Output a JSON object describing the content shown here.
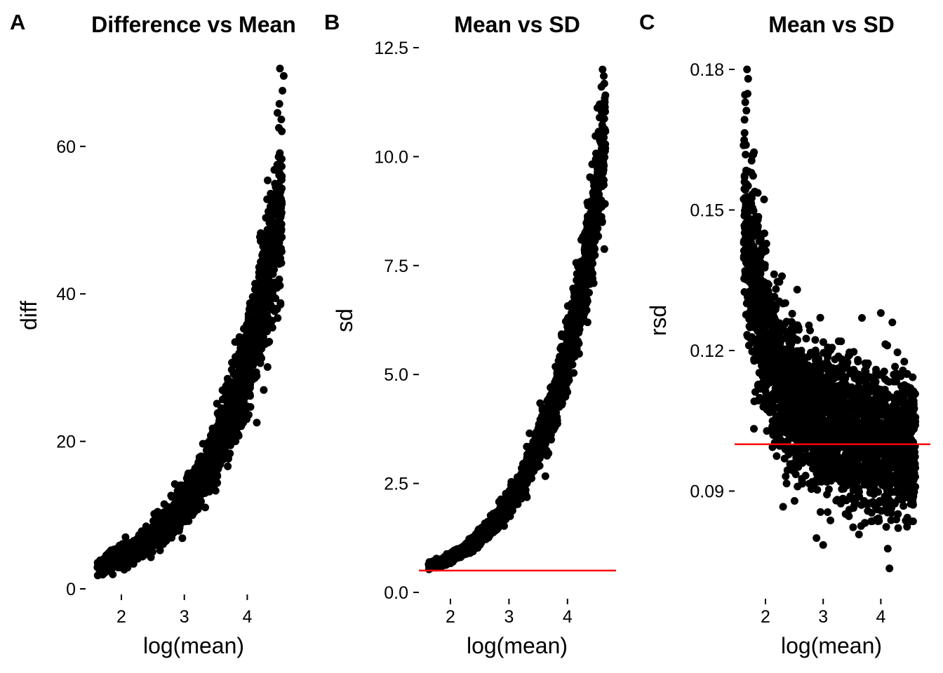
{
  "figure": {
    "panels": [
      {
        "letter": "A"
      },
      {
        "letter": "B"
      },
      {
        "letter": "C"
      }
    ]
  },
  "colors": {
    "points": "#000000",
    "reference_line": "#ff0000",
    "background": "#ffffff"
  },
  "chart_data": [
    {
      "type": "scatter",
      "panel": "A",
      "title": "Difference vs Mean",
      "xlabel": "log(mean)",
      "ylabel": "diff",
      "xlim": [
        1.5,
        4.7
      ],
      "ylim": [
        0,
        72
      ],
      "xticks": [
        2,
        3,
        4
      ],
      "yticks": [
        0,
        20,
        40,
        60
      ],
      "xtick_labels": [
        "2",
        "3",
        "4"
      ],
      "ytick_labels": [
        "0",
        "20",
        "40",
        "60"
      ],
      "grid": false,
      "trend": {
        "x": [
          1.62,
          1.8,
          2.0,
          2.2,
          2.4,
          2.6,
          2.8,
          3.0,
          3.2,
          3.4,
          3.6,
          3.8,
          4.0,
          4.2,
          4.4,
          4.55
        ],
        "y": [
          3.0,
          3.6,
          4.4,
          5.3,
          6.4,
          7.8,
          9.4,
          11.4,
          13.9,
          17.0,
          20.7,
          25.3,
          30.9,
          37.7,
          46.0,
          53.5
        ],
        "spread": [
          0.7,
          0.8,
          0.9,
          1.0,
          1.1,
          1.3,
          1.5,
          1.7,
          2.0,
          2.4,
          2.9,
          3.6,
          4.4,
          5.4,
          6.6,
          7.6
        ]
      },
      "extreme_points": [
        {
          "x": 4.52,
          "y": 70.5
        },
        {
          "x": 4.58,
          "y": 69.5
        },
        {
          "x": 4.56,
          "y": 67.5
        },
        {
          "x": 4.48,
          "y": 64.5
        },
        {
          "x": 4.55,
          "y": 62.0
        },
        {
          "x": 2.85,
          "y": 14.2
        }
      ],
      "reference_line": null
    },
    {
      "type": "scatter",
      "panel": "B",
      "title": "Mean vs SD",
      "xlabel": "log(mean)",
      "ylabel": "sd",
      "xlim": [
        1.5,
        4.85
      ],
      "ylim": [
        0,
        12.5
      ],
      "xticks": [
        2,
        3,
        4
      ],
      "yticks": [
        0.0,
        2.5,
        5.0,
        7.5,
        10.0,
        12.5
      ],
      "xtick_labels": [
        "2",
        "3",
        "4"
      ],
      "ytick_labels": [
        "0.0",
        "2.5",
        "5.0",
        "7.5",
        "10.0",
        "12.5"
      ],
      "grid": false,
      "trend": {
        "x": [
          1.62,
          1.8,
          2.0,
          2.2,
          2.4,
          2.6,
          2.8,
          3.0,
          3.2,
          3.4,
          3.6,
          3.8,
          4.0,
          4.2,
          4.4,
          4.6,
          4.65
        ],
        "y": [
          0.6,
          0.68,
          0.8,
          0.95,
          1.15,
          1.4,
          1.7,
          2.05,
          2.5,
          3.05,
          3.7,
          4.5,
          5.5,
          6.7,
          8.2,
          10.0,
          10.6
        ],
        "spread": [
          0.05,
          0.06,
          0.07,
          0.08,
          0.1,
          0.12,
          0.15,
          0.18,
          0.22,
          0.27,
          0.33,
          0.4,
          0.5,
          0.6,
          0.75,
          0.9,
          0.95
        ]
      },
      "extreme_points": [
        {
          "x": 4.6,
          "y": 12.0
        },
        {
          "x": 4.62,
          "y": 11.85
        },
        {
          "x": 4.58,
          "y": 11.6
        },
        {
          "x": 4.55,
          "y": 11.2
        }
      ],
      "reference_line": {
        "orientation": "horizontal",
        "y": 0.5
      }
    },
    {
      "type": "scatter",
      "panel": "C",
      "title": "Mean vs SD",
      "xlabel": "log(mean)",
      "ylabel": "rsd",
      "xlim": [
        1.55,
        4.75
      ],
      "ylim": [
        0.07,
        0.18
      ],
      "xticks": [
        2,
        3,
        4
      ],
      "yticks": [
        0.09,
        0.12,
        0.15,
        0.18
      ],
      "xtick_labels": [
        "2",
        "3",
        "4"
      ],
      "ytick_labels": [
        "0.09",
        "0.12",
        "0.15",
        "0.18"
      ],
      "grid": false,
      "trend": {
        "x": [
          1.62,
          1.75,
          1.9,
          2.05,
          2.2,
          2.4,
          2.6,
          2.8,
          3.0,
          3.2,
          3.4,
          3.6,
          3.8,
          4.0,
          4.2,
          4.4,
          4.6
        ],
        "y": [
          0.148,
          0.138,
          0.128,
          0.121,
          0.116,
          0.111,
          0.108,
          0.106,
          0.104,
          0.103,
          0.102,
          0.101,
          0.101,
          0.1,
          0.1,
          0.1,
          0.1
        ],
        "spread": [
          0.016,
          0.015,
          0.013,
          0.012,
          0.011,
          0.01,
          0.01,
          0.01,
          0.01,
          0.01,
          0.01,
          0.01,
          0.01,
          0.01,
          0.01,
          0.01,
          0.01
        ]
      },
      "extreme_points": [
        {
          "x": 1.68,
          "y": 0.18
        },
        {
          "x": 1.7,
          "y": 0.178
        },
        {
          "x": 1.65,
          "y": 0.173
        },
        {
          "x": 4.0,
          "y": 0.128
        },
        {
          "x": 4.2,
          "y": 0.126
        },
        {
          "x": 4.15,
          "y": 0.0735
        },
        {
          "x": 3.0,
          "y": 0.0785
        },
        {
          "x": 2.95,
          "y": 0.127
        },
        {
          "x": 2.55,
          "y": 0.133
        }
      ],
      "reference_line": {
        "orientation": "horizontal",
        "y": 0.1
      }
    }
  ]
}
